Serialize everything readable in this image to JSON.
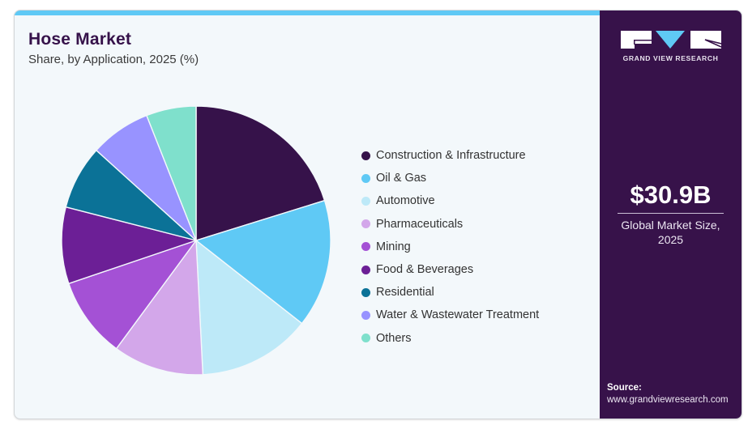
{
  "header": {
    "title": "Hose Market",
    "subtitle": "Share, by Application, 2025 (%)"
  },
  "brand": {
    "name": "GRAND VIEW RESEARCH",
    "accent": "#5fc9f5",
    "panel_color": "#37124a"
  },
  "summary": {
    "value": "$30.9B",
    "label_line1": "Global Market Size,",
    "label_line2": "2025"
  },
  "source": {
    "label": "Source:",
    "url": "www.grandviewresearch.com"
  },
  "chart_data": {
    "type": "pie",
    "title": "Hose Market",
    "subtitle": "Share, by Application, 2025 (%)",
    "start_angle": "12 o'clock",
    "direction": "clockwise",
    "legend_position": "right",
    "categories": [
      "Construction & Infrastructure",
      "Oil & Gas",
      "Automotive",
      "Pharmaceuticals",
      "Mining",
      "Food & Beverages",
      "Residential",
      "Water & Wastewater Treatment",
      "Others"
    ],
    "values": [
      20.2,
      15.4,
      13.6,
      10.9,
      9.7,
      9.2,
      7.7,
      7.3,
      6.0
    ],
    "colors": [
      "#36124a",
      "#5fc9f5",
      "#bde9f8",
      "#d3a7ea",
      "#a451d5",
      "#6c1f96",
      "#0b7297",
      "#9893ff",
      "#7fe0cc"
    ]
  }
}
